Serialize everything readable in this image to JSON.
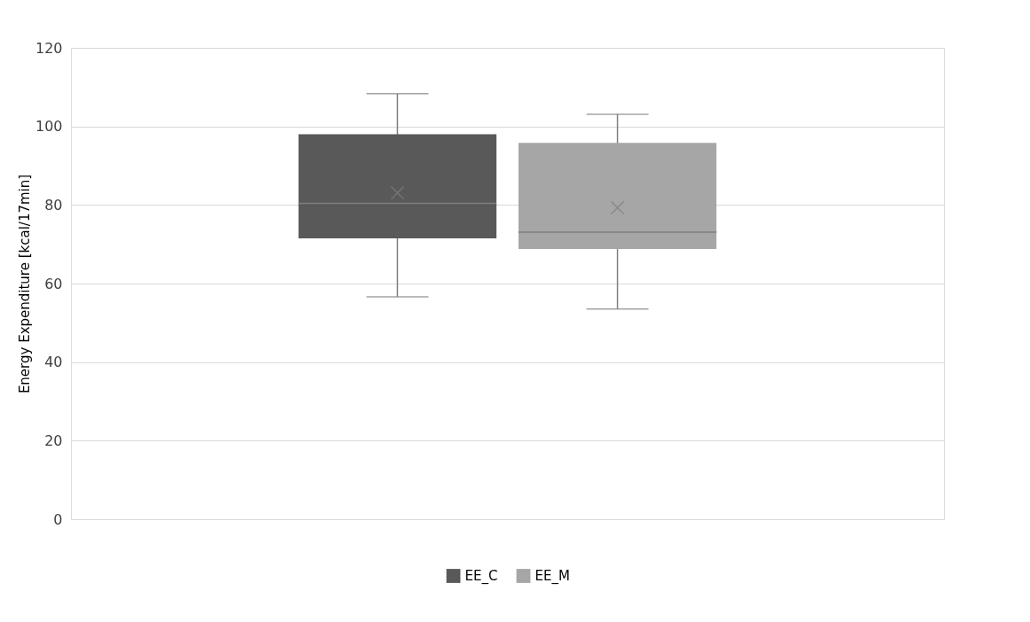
{
  "chart_data": {
    "type": "box",
    "ylabel": "Energy Expenditure [kcal/17min]",
    "categories": [
      null
    ],
    "series": [
      {
        "name": "EE_C",
        "color": "#595959",
        "boxes": [
          {
            "low": 56.6,
            "q1": 71.5,
            "median": 80.4,
            "q3": 98.0,
            "high": 108.3,
            "mean": 83.1
          }
        ]
      },
      {
        "name": "EE_M",
        "color": "#a6a6a6",
        "boxes": [
          {
            "low": 53.5,
            "q1": 68.8,
            "median": 73.1,
            "q3": 95.8,
            "high": 103.1,
            "mean": 79.3
          }
        ]
      }
    ],
    "ylim": [
      0,
      120
    ],
    "yticks": [
      0,
      20,
      40,
      60,
      80,
      100,
      120
    ],
    "grid": "y",
    "legend": "bottom",
    "tick_labels": "y",
    "marker": "cross"
  }
}
